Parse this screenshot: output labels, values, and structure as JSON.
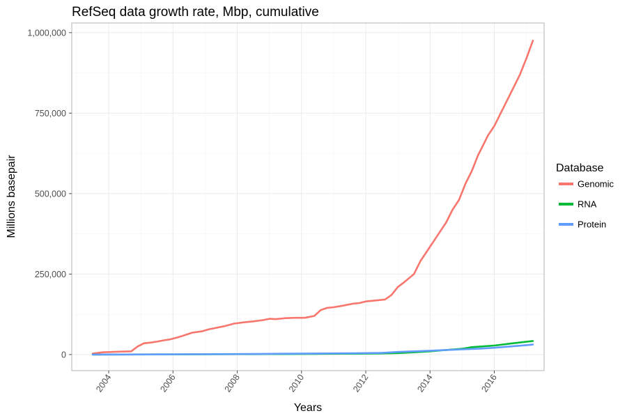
{
  "chart_data": {
    "type": "line",
    "title": "RefSeq data growth rate, Mbp, cumulative",
    "xlabel": "Years",
    "ylabel": "Millions basepair",
    "xlim": [
      2002.85,
      2017.55
    ],
    "ylim": [
      -50000,
      1030000
    ],
    "x_ticks": [
      2004,
      2006,
      2008,
      2010,
      2012,
      2014,
      2016
    ],
    "x_tick_labels": [
      "2004",
      "2006",
      "2008",
      "2010",
      "2012",
      "2014",
      "2016"
    ],
    "y_ticks": [
      0,
      250000,
      500000,
      750000,
      1000000
    ],
    "y_tick_labels": [
      "0",
      "250,000",
      "500,000",
      "750,000",
      "1,000,000"
    ],
    "grid": true,
    "legend": {
      "title": "Database",
      "position": "right"
    },
    "series": [
      {
        "name": "Genomic",
        "color": "#F8766D",
        "x": [
          2003.5,
          2003.8,
          2004.1,
          2004.4,
          2004.7,
          2004.9,
          2005.1,
          2005.3,
          2005.5,
          2005.7,
          2005.9,
          2006.1,
          2006.3,
          2006.6,
          2006.9,
          2007.1,
          2007.3,
          2007.6,
          2007.9,
          2008.2,
          2008.5,
          2008.8,
          2009.0,
          2009.2,
          2009.5,
          2009.8,
          2010.1,
          2010.4,
          2010.6,
          2010.8,
          2011.0,
          2011.3,
          2011.6,
          2011.8,
          2012.0,
          2012.3,
          2012.6,
          2012.8,
          2013.0,
          2013.2,
          2013.5,
          2013.7,
          2013.9,
          2014.1,
          2014.3,
          2014.5,
          2014.7,
          2014.9,
          2015.1,
          2015.3,
          2015.5,
          2015.6,
          2015.8,
          2016.0,
          2016.2,
          2016.4,
          2016.6,
          2016.8,
          2017.0,
          2017.2
        ],
        "values": [
          3000,
          7000,
          8000,
          9000,
          10000,
          25000,
          35000,
          37000,
          40000,
          44000,
          47000,
          52000,
          58000,
          68000,
          72000,
          78000,
          82000,
          88000,
          96000,
          100000,
          103000,
          107000,
          111000,
          110000,
          113000,
          114000,
          114000,
          120000,
          138000,
          145000,
          147000,
          152000,
          158000,
          160000,
          165000,
          168000,
          171000,
          185000,
          210000,
          225000,
          250000,
          290000,
          320000,
          350000,
          380000,
          410000,
          450000,
          480000,
          530000,
          570000,
          620000,
          640000,
          680000,
          710000,
          750000,
          790000,
          830000,
          870000,
          920000,
          975000
        ]
      },
      {
        "name": "RNA",
        "color": "#00BA38",
        "x": [
          2003.5,
          2004.5,
          2005.5,
          2006.5,
          2007.5,
          2008.5,
          2009.5,
          2010.5,
          2011.5,
          2012.5,
          2013.0,
          2013.5,
          2014.0,
          2014.5,
          2015.0,
          2015.3,
          2015.6,
          2016.0,
          2016.5,
          2017.2
        ],
        "values": [
          0,
          200,
          400,
          600,
          900,
          1200,
          1600,
          2000,
          2600,
          3500,
          4500,
          7000,
          10000,
          14000,
          18000,
          23000,
          25000,
          28000,
          34000,
          42000
        ]
      },
      {
        "name": "Protein",
        "color": "#619CFF",
        "x": [
          2003.5,
          2004.5,
          2005.5,
          2006.5,
          2007.5,
          2008.5,
          2009.5,
          2010.5,
          2011.5,
          2012.5,
          2013.0,
          2013.5,
          2014.0,
          2014.5,
          2015.0,
          2015.5,
          2016.0,
          2016.5,
          2017.2
        ],
        "values": [
          0,
          200,
          500,
          800,
          1200,
          1800,
          2500,
          3200,
          4000,
          5000,
          8000,
          10000,
          12000,
          14000,
          16000,
          18000,
          21000,
          25000,
          31000
        ]
      }
    ]
  }
}
